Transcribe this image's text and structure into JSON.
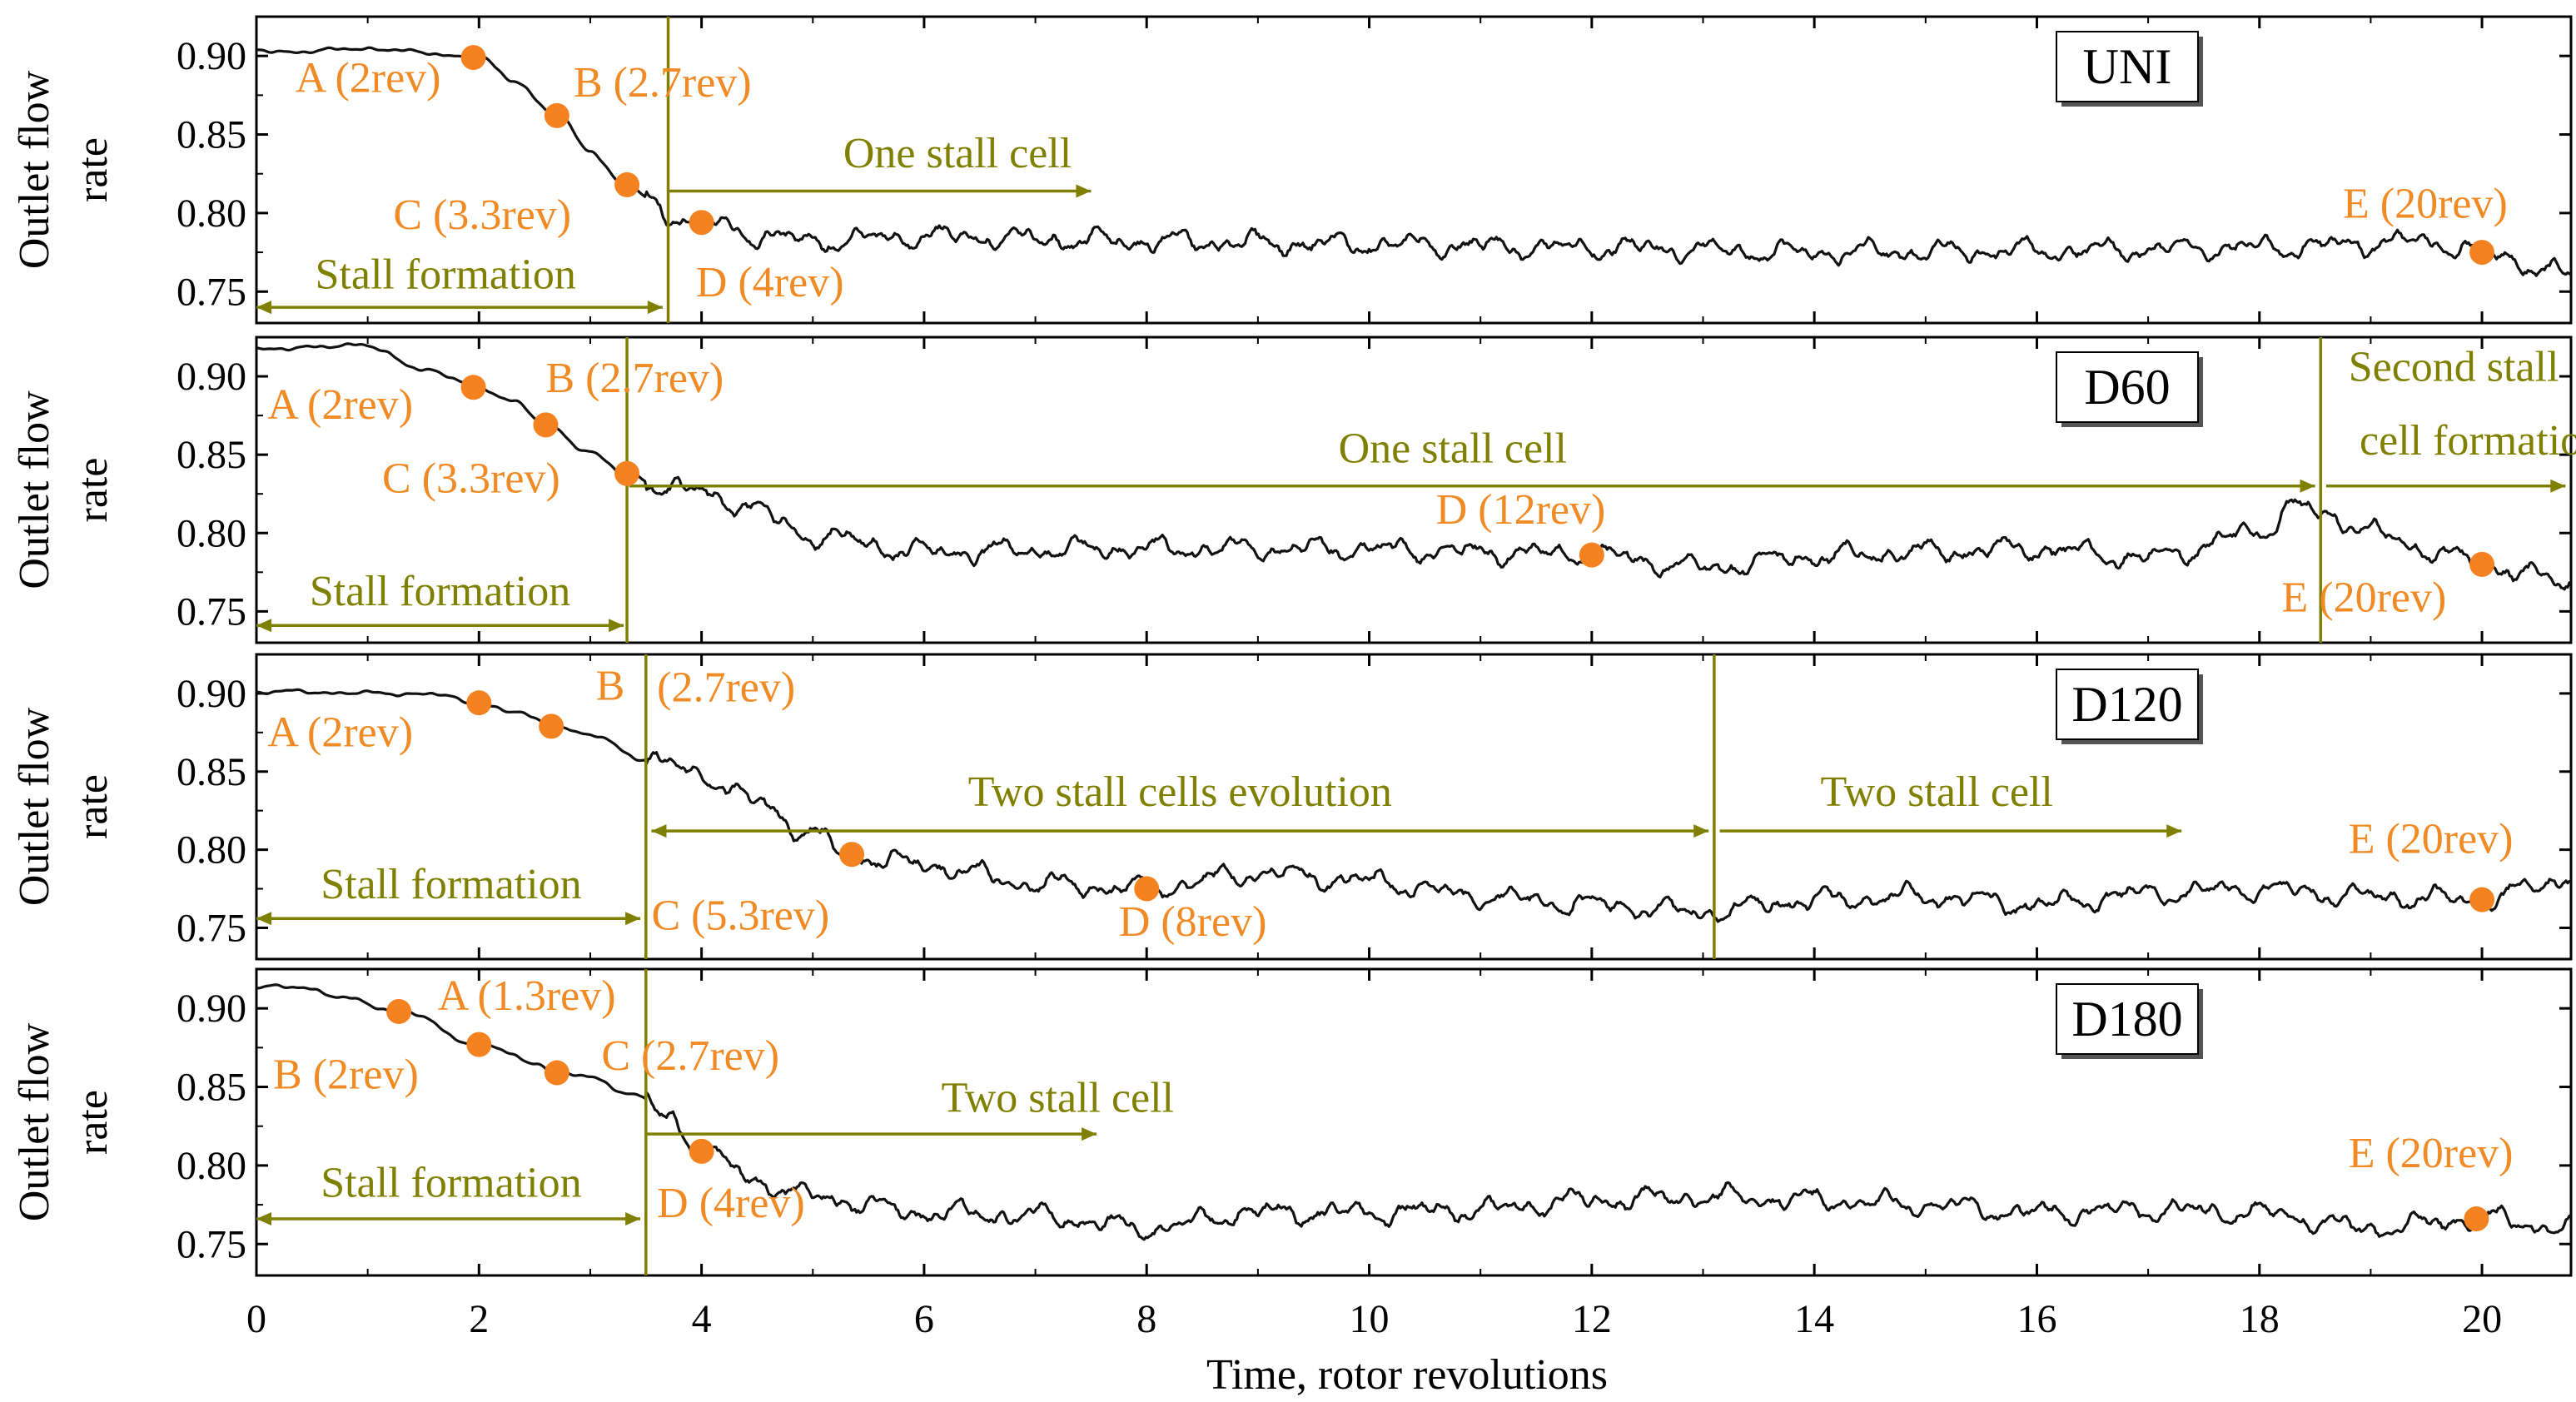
{
  "chart_data": {
    "type": "line",
    "xlabel": "Time, rotor revolutions",
    "xlim": [
      0,
      20.8
    ],
    "x_ticks": [
      "0",
      "2",
      "4",
      "6",
      "8",
      "10",
      "12",
      "14",
      "16",
      "18",
      "20"
    ],
    "y_ticks": [
      "0.90",
      "0.85",
      "0.80",
      "0.75"
    ],
    "panels": [
      {
        "name": "UNI",
        "ylabel": [
          "Outlet flow",
          "rate"
        ],
        "ylim": [
          0.73,
          0.925
        ],
        "series_knots": [
          [
            0,
            0.903
          ],
          [
            0.5,
            0.903
          ],
          [
            1.0,
            0.905
          ],
          [
            1.5,
            0.902
          ],
          [
            2.0,
            0.899
          ],
          [
            2.3,
            0.885
          ],
          [
            2.7,
            0.862
          ],
          [
            3.0,
            0.84
          ],
          [
            3.3,
            0.818
          ],
          [
            3.7,
            0.8
          ],
          [
            4.0,
            0.794
          ],
          [
            4.5,
            0.786
          ],
          [
            5.0,
            0.782
          ],
          [
            6,
            0.785
          ],
          [
            8,
            0.782
          ],
          [
            10,
            0.78
          ],
          [
            12,
            0.778
          ],
          [
            14,
            0.775
          ],
          [
            16,
            0.776
          ],
          [
            18,
            0.778
          ],
          [
            19.5,
            0.782
          ],
          [
            20,
            0.775
          ],
          [
            20.8,
            0.76
          ]
        ],
        "points": [
          {
            "label": "A (2rev)",
            "x": 1.95,
            "y": 0.899,
            "label_dx": -1.6,
            "label_dy": -0.022
          },
          {
            "label": "B (2.7rev)",
            "x": 2.7,
            "y": 0.862,
            "label_dx": 0.15,
            "label_dy": 0.012
          },
          {
            "label": "C (3.3rev)",
            "x": 3.33,
            "y": 0.818,
            "label_dx": -2.1,
            "label_dy": -0.028
          },
          {
            "label": "D (4rev)",
            "x": 4.0,
            "y": 0.794,
            "label_dx": -0.05,
            "label_dy": -0.047
          },
          {
            "label": "E (20rev)",
            "x": 20.0,
            "y": 0.775,
            "label_dx": -1.25,
            "label_dy": 0.022
          }
        ],
        "vlines": [
          3.7
        ],
        "arrows": [
          {
            "label": "Stall formation",
            "from": 0,
            "to": 3.65,
            "y": 0.74,
            "dir": "both",
            "label_x": 1.7,
            "label_y": 0.752
          },
          {
            "label": "One stall cell",
            "from": 3.7,
            "to": 7.5,
            "y": 0.814,
            "dir": "right",
            "label_x": 6.3,
            "label_y": 0.829
          }
        ]
      },
      {
        "name": "D60",
        "ylabel": [
          "Outlet flow",
          "rate"
        ],
        "ylim": [
          0.73,
          0.925
        ],
        "series_knots": [
          [
            0,
            0.918
          ],
          [
            0.5,
            0.918
          ],
          [
            0.9,
            0.921
          ],
          [
            1.5,
            0.905
          ],
          [
            2.0,
            0.893
          ],
          [
            2.3,
            0.885
          ],
          [
            2.6,
            0.869
          ],
          [
            3.0,
            0.852
          ],
          [
            3.3,
            0.838
          ],
          [
            3.7,
            0.83
          ],
          [
            4.3,
            0.82
          ],
          [
            5.0,
            0.798
          ],
          [
            6,
            0.788
          ],
          [
            8,
            0.79
          ],
          [
            10,
            0.79
          ],
          [
            11,
            0.788
          ],
          [
            12,
            0.786
          ],
          [
            13,
            0.778
          ],
          [
            14,
            0.785
          ],
          [
            15,
            0.788
          ],
          [
            16,
            0.79
          ],
          [
            17,
            0.784
          ],
          [
            18.0,
            0.8
          ],
          [
            18.3,
            0.818
          ],
          [
            18.6,
            0.81
          ],
          [
            19.5,
            0.79
          ],
          [
            20,
            0.78
          ],
          [
            20.8,
            0.768
          ]
        ],
        "points": [
          {
            "label": "A (2rev)",
            "x": 1.95,
            "y": 0.893,
            "label_dx": -1.85,
            "label_dy": -0.02
          },
          {
            "label": "B (2.7rev)",
            "x": 2.6,
            "y": 0.869,
            "label_dx": 0.0,
            "label_dy": 0.021
          },
          {
            "label": "C (3.3rev)",
            "x": 3.33,
            "y": 0.838,
            "label_dx": -2.2,
            "label_dy": -0.012
          },
          {
            "label": "D (12rev)",
            "x": 12.0,
            "y": 0.786,
            "label_dx": -1.4,
            "label_dy": 0.02
          },
          {
            "label": "E (20rev)",
            "x": 20.0,
            "y": 0.78,
            "label_dx": -1.8,
            "label_dy": -0.03
          }
        ],
        "vlines": [
          3.33,
          18.55
        ],
        "arrows": [
          {
            "label": "Stall formation",
            "from": 0,
            "to": 3.3,
            "y": 0.741,
            "dir": "both",
            "label_x": 1.65,
            "label_y": 0.754
          },
          {
            "label": "One stall cell",
            "from": 3.35,
            "to": 18.5,
            "y": 0.83,
            "dir": "right",
            "label_x": 10.75,
            "label_y": 0.845
          },
          {
            "label": "",
            "from": 18.6,
            "to": 20.75,
            "y": 0.83,
            "dir": "right",
            "label_x": 19.6,
            "label_y": 0.845
          }
        ],
        "text_lines": [
          {
            "label": "Second stall",
            "x": 18.8,
            "y": 0.897
          },
          {
            "label": "cell formation",
            "x": 18.9,
            "y": 0.85
          }
        ]
      },
      {
        "name": "D120",
        "ylabel": [
          "Outlet flow",
          "rate"
        ],
        "ylim": [
          0.73,
          0.925
        ],
        "series_knots": [
          [
            0,
            0.901
          ],
          [
            0.5,
            0.901
          ],
          [
            1.0,
            0.9
          ],
          [
            1.5,
            0.9
          ],
          [
            2.0,
            0.894
          ],
          [
            2.3,
            0.888
          ],
          [
            2.7,
            0.879
          ],
          [
            3.0,
            0.873
          ],
          [
            3.5,
            0.858
          ],
          [
            4.0,
            0.848
          ],
          [
            4.5,
            0.83
          ],
          [
            5.0,
            0.81
          ],
          [
            5.3,
            0.797
          ],
          [
            6,
            0.79
          ],
          [
            7,
            0.778
          ],
          [
            8,
            0.775
          ],
          [
            9,
            0.785
          ],
          [
            10,
            0.78
          ],
          [
            11,
            0.77
          ],
          [
            12,
            0.765
          ],
          [
            13,
            0.76
          ],
          [
            14,
            0.768
          ],
          [
            15,
            0.77
          ],
          [
            16,
            0.765
          ],
          [
            17,
            0.772
          ],
          [
            18,
            0.775
          ],
          [
            19,
            0.77
          ],
          [
            20,
            0.768
          ],
          [
            20.8,
            0.782
          ]
        ],
        "points": [
          {
            "label": "A (2rev)",
            "x": 2.0,
            "y": 0.894,
            "label_dx": -1.9,
            "label_dy": -0.028
          },
          {
            "label": "B",
            "x": 2.65,
            "y": 0.879,
            "label_dx": 0.4,
            "label_dy": 0.017
          },
          {
            "label": "C (5.3rev)",
            "x": 5.35,
            "y": 0.797,
            "label_dx": -1.8,
            "label_dy": -0.048
          },
          {
            "label": "D (8rev)",
            "x": 8.0,
            "y": 0.775,
            "label_dx": -0.25,
            "label_dy": -0.03
          },
          {
            "label": "E (20rev)",
            "x": 20.0,
            "y": 0.768,
            "label_dx": -1.2,
            "label_dy": 0.03
          }
        ],
        "vlines": [
          3.5,
          13.1
        ],
        "extra_text": [
          {
            "label": "(2.7rev)",
            "x": 3.6,
            "y": 0.895
          }
        ],
        "arrows": [
          {
            "label": "Stall formation",
            "from": 0,
            "to": 3.45,
            "y": 0.756,
            "dir": "both",
            "label_x": 1.75,
            "label_y": 0.769
          },
          {
            "label": "Two stall cells evolution",
            "from": 3.55,
            "to": 13.05,
            "y": 0.812,
            "dir": "both",
            "label_x": 8.3,
            "label_y": 0.828
          },
          {
            "label": "Two stall cell",
            "from": 13.15,
            "to": 17.3,
            "y": 0.812,
            "dir": "right",
            "label_x": 15.1,
            "label_y": 0.828
          }
        ]
      },
      {
        "name": "D180",
        "ylabel": [
          "Outlet flow",
          "rate"
        ],
        "ylim": [
          0.73,
          0.925
        ],
        "series_knots": [
          [
            0,
            0.913
          ],
          [
            0.4,
            0.914
          ],
          [
            0.8,
            0.906
          ],
          [
            1.3,
            0.898
          ],
          [
            2.0,
            0.877
          ],
          [
            2.5,
            0.866
          ],
          [
            2.7,
            0.859
          ],
          [
            3.0,
            0.856
          ],
          [
            3.4,
            0.845
          ],
          [
            3.7,
            0.83
          ],
          [
            4.0,
            0.809
          ],
          [
            4.5,
            0.79
          ],
          [
            5.0,
            0.78
          ],
          [
            6,
            0.77
          ],
          [
            7,
            0.768
          ],
          [
            8,
            0.76
          ],
          [
            9,
            0.77
          ],
          [
            10,
            0.77
          ],
          [
            11,
            0.772
          ],
          [
            12,
            0.778
          ],
          [
            13,
            0.78
          ],
          [
            14,
            0.778
          ],
          [
            15,
            0.775
          ],
          [
            16,
            0.77
          ],
          [
            17,
            0.772
          ],
          [
            18,
            0.77
          ],
          [
            19,
            0.76
          ],
          [
            20,
            0.766
          ],
          [
            20.8,
            0.76
          ]
        ],
        "points": [
          {
            "label": "A (1.3rev)",
            "x": 1.28,
            "y": 0.898,
            "label_dx": 0.35,
            "label_dy": 0.001
          },
          {
            "label": "B (2rev)",
            "x": 2.0,
            "y": 0.877,
            "label_dx": -1.85,
            "label_dy": -0.028
          },
          {
            "label": "C (2.7rev)",
            "x": 2.7,
            "y": 0.859,
            "label_dx": 0.4,
            "label_dy": 0.002
          },
          {
            "label": "D (4rev)",
            "x": 4.0,
            "y": 0.809,
            "label_dx": -0.4,
            "label_dy": -0.042
          },
          {
            "label": "E (20rev)",
            "x": 19.95,
            "y": 0.766,
            "label_dx": -1.15,
            "label_dy": 0.033
          }
        ],
        "vlines": [
          3.5
        ],
        "arrows": [
          {
            "label": "Stall formation",
            "from": 0,
            "to": 3.45,
            "y": 0.766,
            "dir": "both",
            "label_x": 1.75,
            "label_y": 0.78
          },
          {
            "label": "Two stall cell",
            "from": 3.5,
            "to": 7.55,
            "y": 0.82,
            "dir": "right",
            "label_x": 7.2,
            "label_y": 0.834
          }
        ]
      }
    ]
  },
  "colors": {
    "annotation": "#f08a24",
    "marker": "#f58220",
    "olive": "#808000",
    "line": "#111111"
  }
}
